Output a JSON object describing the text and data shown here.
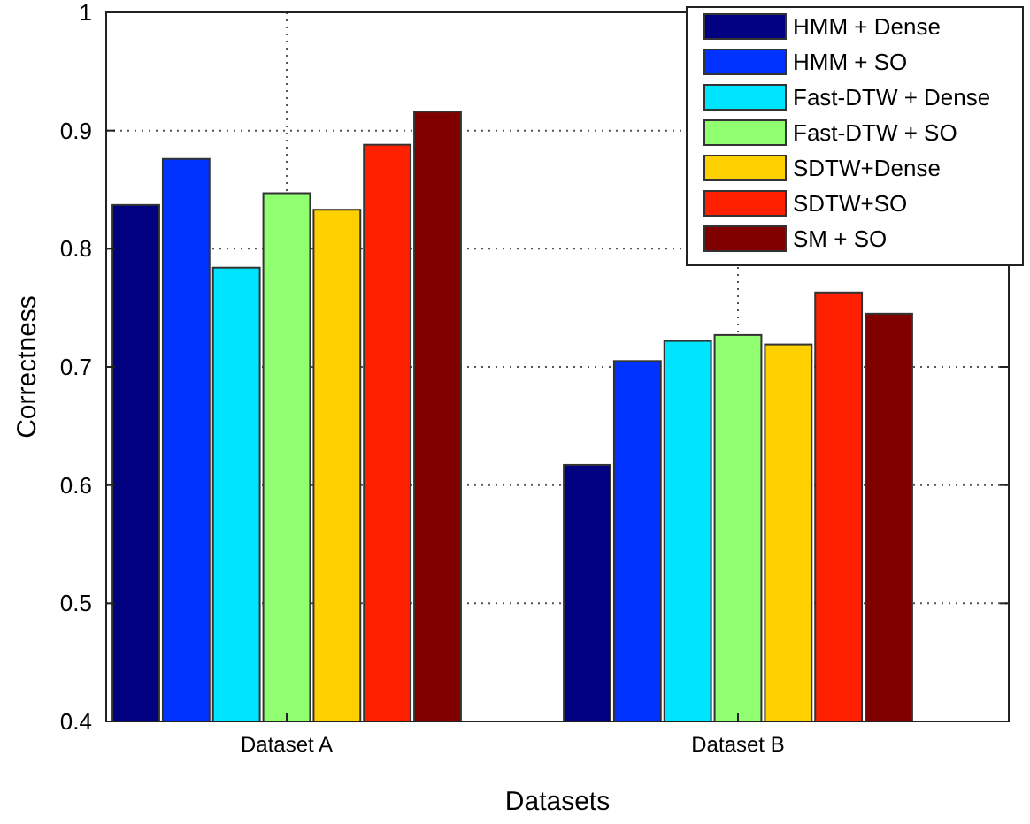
{
  "chart_data": {
    "type": "bar",
    "xlabel": "Datasets",
    "ylabel": "Correctness",
    "categories": [
      "Dataset A",
      "Dataset B"
    ],
    "series": [
      {
        "name": "HMM + Dense",
        "color": "#000080",
        "values": [
          0.837,
          0.617
        ]
      },
      {
        "name": "HMM + SO",
        "color": "#0033ff",
        "values": [
          0.876,
          0.705
        ]
      },
      {
        "name": "Fast-DTW + Dense",
        "color": "#00e5ff",
        "values": [
          0.784,
          0.722
        ]
      },
      {
        "name": "Fast-DTW + SO",
        "color": "#90ff70",
        "values": [
          0.847,
          0.727
        ]
      },
      {
        "name": "SDTW+Dense",
        "color": "#ffd000",
        "values": [
          0.833,
          0.719
        ]
      },
      {
        "name": "SDTW+SO",
        "color": "#ff2000",
        "values": [
          0.888,
          0.763
        ]
      },
      {
        "name": "SM + SO",
        "color": "#800000",
        "values": [
          0.916,
          0.745
        ]
      }
    ],
    "ylim": [
      0.4,
      1
    ],
    "yticks": [
      0.4,
      0.5,
      0.6,
      0.7,
      0.8,
      0.9,
      1
    ],
    "grid": true,
    "legend": "top right"
  }
}
